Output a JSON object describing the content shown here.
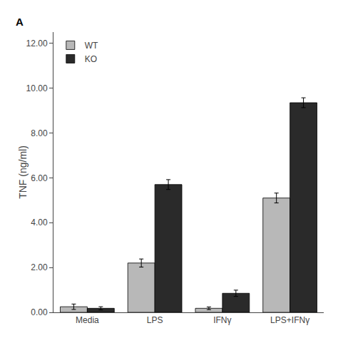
{
  "chart_data": {
    "type": "bar",
    "ylabel": "TNF (ng/ml)",
    "categories": [
      "Media",
      "LPS",
      "IFNγ",
      "LPS+IFNγ"
    ],
    "series": [
      {
        "name": "WT",
        "color": "#b8b8b8",
        "values": [
          0.25,
          2.2,
          0.18,
          5.1
        ],
        "errors": [
          0.12,
          0.18,
          0.06,
          0.22
        ]
      },
      {
        "name": "KO",
        "color": "#2a2a2a",
        "values": [
          0.18,
          5.7,
          0.85,
          9.35
        ],
        "errors": [
          0.07,
          0.22,
          0.14,
          0.22
        ]
      }
    ],
    "ylim": [
      0,
      12.5
    ],
    "yticks": [
      {
        "value": 0.0,
        "label": "0.00"
      },
      {
        "value": 2.0,
        "label": "2.00"
      },
      {
        "value": 4.0,
        "label": "4.00"
      },
      {
        "value": 6.0,
        "label": "6.00"
      },
      {
        "value": 8.0,
        "label": "8.00"
      },
      {
        "value": 10.0,
        "label": "10.00"
      },
      {
        "value": 12.0,
        "label": "12.00"
      }
    ],
    "grid": false,
    "legend": "upper left",
    "annotations": [
      {
        "text": "A"
      }
    ]
  }
}
